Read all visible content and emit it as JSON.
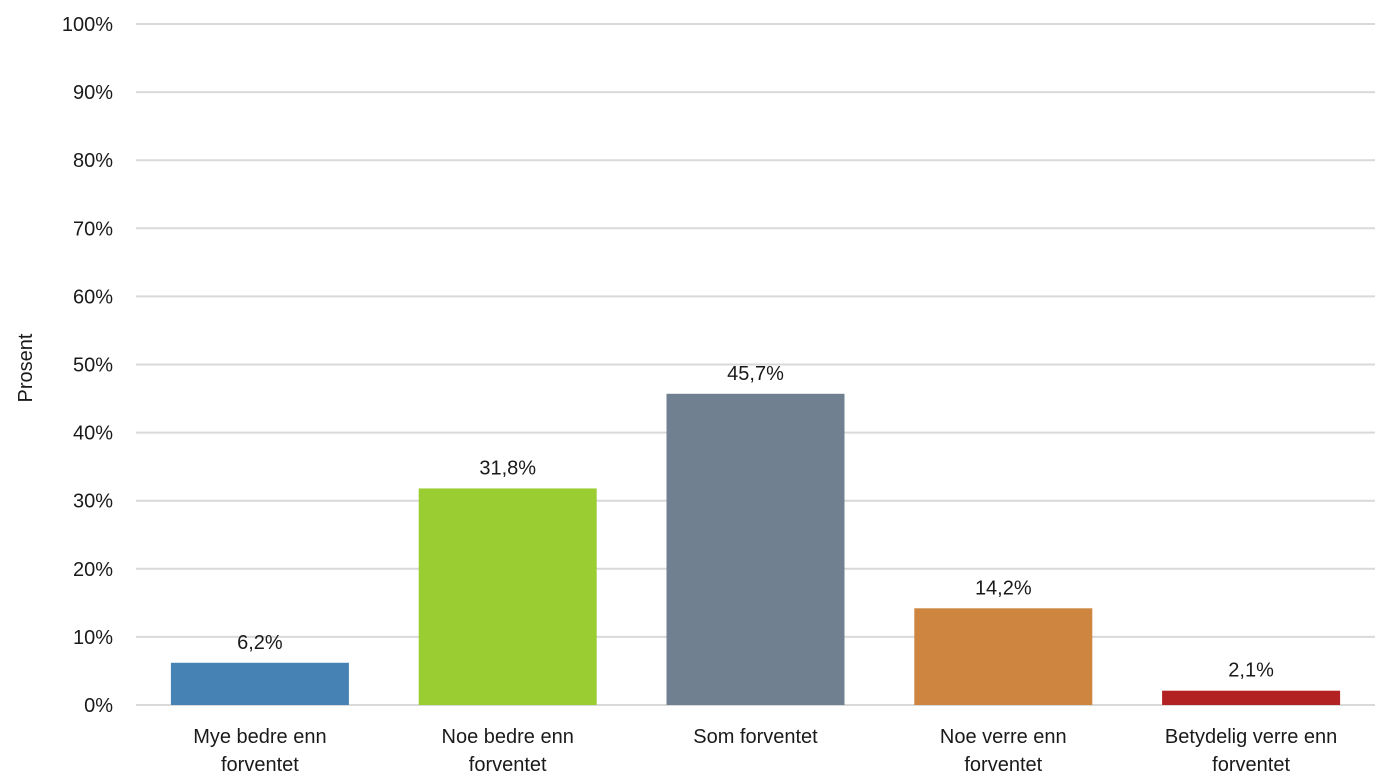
{
  "chart_data": {
    "type": "bar",
    "categories": [
      [
        "Mye bedre enn",
        "forventet"
      ],
      [
        "Noe bedre enn",
        "forventet"
      ],
      [
        "Som forventet"
      ],
      [
        "Noe verre enn",
        "forventet"
      ],
      [
        "Betydelig verre enn",
        "forventet"
      ]
    ],
    "values": [
      6.2,
      31.8,
      45.7,
      14.2,
      2.1
    ],
    "data_labels": [
      "6,2%",
      "31,8%",
      "45,7%",
      "14,2%",
      "2,1%"
    ],
    "colors": [
      "#4682b4",
      "#9acd32",
      "#708090",
      "#cd853f",
      "#b22222"
    ],
    "ylabel": "Prosent",
    "ylim": [
      0,
      100
    ],
    "yticks": [
      0,
      10,
      20,
      30,
      40,
      50,
      60,
      70,
      80,
      90,
      100
    ],
    "ytick_labels": [
      "0%",
      "10%",
      "20%",
      "30%",
      "40%",
      "50%",
      "60%",
      "70%",
      "80%",
      "90%",
      "100%"
    ],
    "grid": true,
    "grid_color": "#d9d9d9"
  }
}
